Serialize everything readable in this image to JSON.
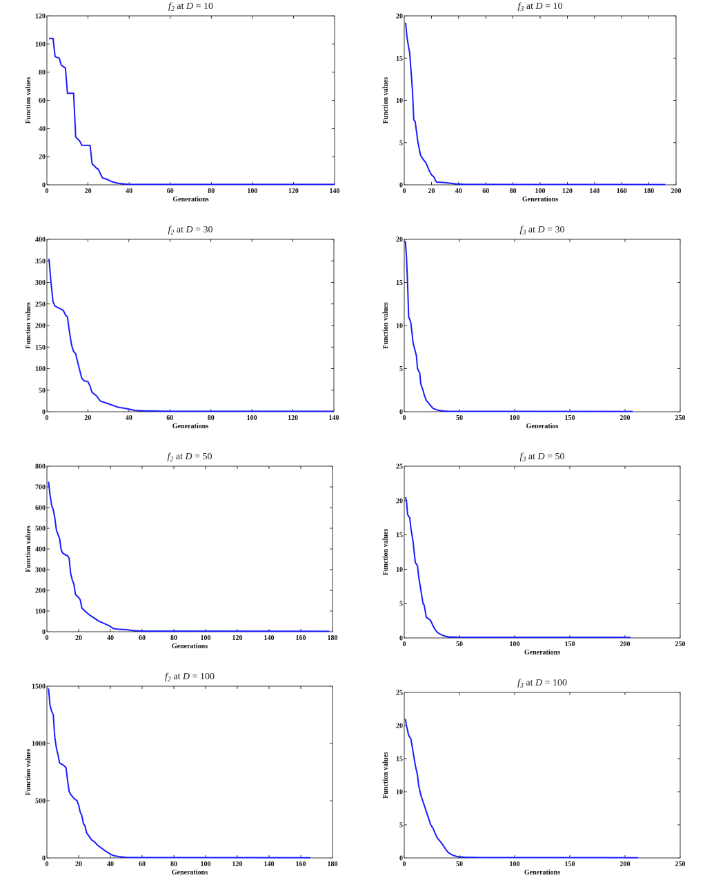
{
  "chart_data": [
    {
      "type": "line",
      "title_fn": "f",
      "title_sub": "2",
      "title_rest": " at ",
      "title_var": "D",
      "title_eq": " = 10",
      "xlabel": "Generations",
      "ylabel": "Function values",
      "xlim": [
        0,
        140
      ],
      "ylim": [
        0,
        120
      ],
      "xticks": [
        0,
        20,
        40,
        60,
        80,
        100,
        120,
        140
      ],
      "yticks": [
        0,
        20,
        40,
        60,
        80,
        100,
        120
      ],
      "grid": false,
      "x": [
        1,
        3,
        4,
        6,
        7,
        9,
        10,
        13,
        14,
        16,
        17,
        21,
        22,
        24,
        25,
        27,
        29,
        32,
        35,
        40,
        140
      ],
      "y": [
        104,
        104,
        91,
        90,
        85,
        83,
        65,
        65,
        34,
        31,
        28,
        28,
        15,
        12,
        11,
        5,
        4,
        2,
        1,
        0.3,
        0.3
      ]
    },
    {
      "type": "line",
      "title_fn": "f",
      "title_sub": "3",
      "title_rest": " at ",
      "title_var": "D",
      "title_eq": " = 10",
      "xlabel": "Generations",
      "ylabel": "Function values",
      "xlim": [
        0,
        200
      ],
      "ylim": [
        0,
        20
      ],
      "xticks": [
        0,
        20,
        40,
        60,
        80,
        100,
        120,
        140,
        160,
        180,
        200
      ],
      "yticks": [
        0,
        5,
        10,
        15,
        20
      ],
      "grid": false,
      "x": [
        1,
        2,
        3,
        4,
        6,
        7,
        8,
        10,
        12,
        14,
        16,
        18,
        20,
        22,
        23,
        24,
        26,
        30,
        34,
        38,
        45,
        60,
        192
      ],
      "y": [
        19.2,
        17.5,
        16.5,
        15.6,
        11.3,
        7.7,
        7.5,
        5.1,
        3.5,
        3.0,
        2.6,
        1.8,
        1.2,
        0.9,
        0.5,
        0.3,
        0.3,
        0.25,
        0.2,
        0.1,
        0.05,
        0.05,
        0.03
      ]
    },
    {
      "type": "line",
      "title_fn": "f",
      "title_sub": "2",
      "title_rest": " at ",
      "title_var": "D",
      "title_eq": " = 30",
      "xlabel": "Generations",
      "ylabel": "Function values",
      "xlim": [
        0,
        140
      ],
      "ylim": [
        0,
        400
      ],
      "xticks": [
        0,
        20,
        40,
        60,
        80,
        100,
        120,
        140
      ],
      "yticks": [
        0,
        50,
        100,
        150,
        200,
        250,
        300,
        350,
        400
      ],
      "grid": false,
      "x": [
        1,
        2,
        3,
        4,
        6,
        7,
        8,
        9,
        10,
        11,
        12,
        13,
        14,
        15,
        17,
        18,
        20,
        21,
        22,
        24,
        26,
        29,
        32,
        35,
        38,
        41,
        43,
        47,
        60,
        140
      ],
      "y": [
        355,
        300,
        255,
        245,
        240,
        238,
        235,
        225,
        220,
        185,
        155,
        140,
        135,
        115,
        78,
        72,
        70,
        60,
        45,
        38,
        25,
        20,
        15,
        10,
        8,
        5,
        3,
        2,
        1,
        1
      ]
    },
    {
      "type": "line",
      "title_fn": "f",
      "title_sub": "3",
      "title_rest": " at ",
      "title_var": "D",
      "title_eq": " = 30",
      "xlabel": "Generatios",
      "ylabel": "Function values",
      "xlim": [
        0,
        250
      ],
      "ylim": [
        0,
        20
      ],
      "xticks": [
        0,
        50,
        100,
        150,
        200,
        250
      ],
      "yticks": [
        0,
        5,
        10,
        15,
        20
      ],
      "grid": false,
      "x": [
        1,
        2,
        3,
        4,
        5,
        6,
        8,
        9,
        11,
        12,
        14,
        15,
        17,
        18,
        20,
        22,
        24,
        26,
        28,
        30,
        33,
        36,
        40,
        50,
        207
      ],
      "y": [
        19.8,
        18,
        15,
        11,
        10.7,
        10.3,
        8,
        7.5,
        6.5,
        5,
        4.5,
        3.2,
        2.5,
        2.0,
        1.3,
        1.0,
        0.7,
        0.4,
        0.3,
        0.2,
        0.12,
        0.08,
        0.05,
        0.04,
        0.03
      ]
    },
    {
      "type": "line",
      "title_fn": "f",
      "title_sub": "2",
      "title_rest": " at ",
      "title_var": "D",
      "title_eq": " = 50",
      "xlabel": "Generations",
      "ylabel": "Function values",
      "xlim": [
        0,
        180
      ],
      "ylim": [
        0,
        800
      ],
      "xticks": [
        0,
        20,
        40,
        60,
        80,
        100,
        120,
        140,
        160,
        180
      ],
      "yticks": [
        0,
        100,
        200,
        300,
        400,
        500,
        600,
        700,
        800
      ],
      "grid": false,
      "x": [
        1,
        2,
        3,
        4,
        5,
        6,
        7,
        8,
        9,
        10,
        12,
        13,
        14,
        15,
        16,
        17,
        18,
        20,
        21,
        22,
        24,
        27,
        30,
        33,
        36,
        39,
        42,
        45,
        50,
        55,
        60,
        178
      ],
      "y": [
        725,
        660,
        610,
        590,
        550,
        490,
        470,
        450,
        395,
        380,
        370,
        368,
        355,
        280,
        250,
        230,
        180,
        165,
        155,
        115,
        100,
        80,
        65,
        50,
        40,
        30,
        15,
        12,
        10,
        5,
        3,
        2
      ]
    },
    {
      "type": "line",
      "title_fn": "f",
      "title_sub": "3",
      "title_rest": " at ",
      "title_var": "D",
      "title_eq": " = 50",
      "xlabel": "Generations",
      "ylabel": "Function values",
      "xlim": [
        0,
        250
      ],
      "ylim": [
        0,
        25
      ],
      "xticks": [
        0,
        50,
        100,
        150,
        200,
        250
      ],
      "yticks": [
        0,
        5,
        10,
        15,
        20,
        25
      ],
      "grid": false,
      "x": [
        1,
        2,
        3,
        4,
        5,
        6,
        7,
        8,
        9,
        10,
        12,
        13,
        14,
        15,
        16,
        17,
        18,
        20,
        22,
        24,
        26,
        28,
        30,
        33,
        36,
        40,
        50,
        205
      ],
      "y": [
        20.5,
        20,
        18,
        17.7,
        17.5,
        16,
        15,
        14,
        12.5,
        11,
        10.5,
        9,
        8,
        7,
        6,
        5,
        4.8,
        3,
        2.8,
        2.5,
        1.8,
        1.2,
        0.8,
        0.5,
        0.3,
        0.15,
        0.1,
        0.08
      ]
    },
    {
      "type": "line",
      "title_fn": "f",
      "title_sub": "2",
      "title_rest": " at ",
      "title_var": "D",
      "title_eq": " = 100",
      "xlabel": "Generations",
      "ylabel": "Function values",
      "xlim": [
        0,
        180
      ],
      "ylim": [
        0,
        1500
      ],
      "xticks": [
        0,
        20,
        40,
        60,
        80,
        100,
        120,
        140,
        160,
        180
      ],
      "yticks": [
        0,
        500,
        1000,
        1500
      ],
      "grid": false,
      "x": [
        1,
        2,
        3,
        4,
        5,
        6,
        7,
        8,
        9,
        10,
        12,
        13,
        14,
        15,
        17,
        19,
        20,
        21,
        22,
        23,
        24,
        25,
        27,
        28,
        30,
        32,
        34,
        36,
        38,
        40,
        42,
        44,
        46,
        48,
        50,
        60,
        166
      ],
      "y": [
        1480,
        1330,
        1280,
        1250,
        1050,
        960,
        900,
        830,
        820,
        815,
        790,
        680,
        580,
        555,
        520,
        500,
        460,
        400,
        370,
        300,
        280,
        220,
        180,
        160,
        140,
        110,
        90,
        70,
        50,
        35,
        20,
        15,
        10,
        8,
        5,
        3,
        2
      ]
    },
    {
      "type": "line",
      "title_fn": "f",
      "title_sub": "3",
      "title_rest": " at ",
      "title_var": "D",
      "title_eq": " = 100",
      "xlabel": "Generations",
      "ylabel": "Function values",
      "xlim": [
        0,
        250
      ],
      "ylim": [
        0,
        25
      ],
      "xticks": [
        0,
        50,
        100,
        150,
        200,
        250
      ],
      "yticks": [
        0,
        5,
        10,
        15,
        20,
        25
      ],
      "grid": false,
      "x": [
        1,
        2,
        4,
        6,
        8,
        10,
        12,
        13,
        15,
        17,
        18,
        20,
        22,
        24,
        26,
        28,
        30,
        32,
        34,
        36,
        38,
        40,
        44,
        48,
        55,
        70,
        212
      ],
      "y": [
        21,
        20,
        18.5,
        18,
        16,
        14,
        12.5,
        11,
        9.5,
        8.5,
        8,
        7,
        6,
        5,
        4.5,
        3.7,
        3,
        2.6,
        2.2,
        1.7,
        1.2,
        0.8,
        0.4,
        0.2,
        0.1,
        0.05,
        0.03
      ]
    }
  ]
}
